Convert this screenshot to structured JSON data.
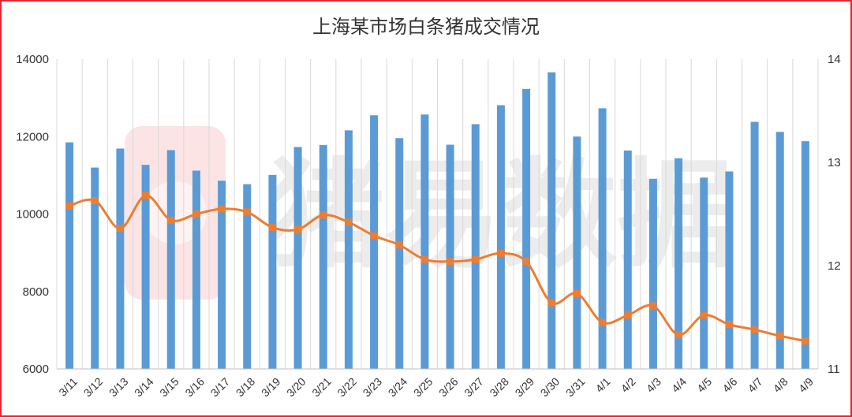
{
  "title": "上海某市场白条猪成交情况",
  "watermark": "猪易数据",
  "colors": {
    "bar": "#5b9bd5",
    "line": "#ed7d31",
    "border": "#e8232c",
    "grid": "#d9d9d9",
    "watermark_logo": "#e8232c"
  },
  "chart_data": {
    "type": "bar",
    "title": "上海某市场白条猪成交情况",
    "categories": [
      "3/11",
      "3/12",
      "3/13",
      "3/14",
      "3/15",
      "3/16",
      "3/17",
      "3/18",
      "3/19",
      "3/20",
      "3/21",
      "3/22",
      "3/23",
      "3/24",
      "3/25",
      "3/26",
      "3/27",
      "3/28",
      "3/29",
      "3/30",
      "3/31",
      "4/1",
      "4/2",
      "4/3",
      "4/4",
      "4/5",
      "4/6",
      "4/7",
      "4/8",
      "4/9"
    ],
    "y_left": {
      "range": [
        6000,
        14000
      ],
      "ticks": [
        6000,
        8000,
        10000,
        12000,
        14000
      ]
    },
    "y_right": {
      "range": [
        11,
        14
      ],
      "ticks": [
        11,
        12,
        13,
        14
      ]
    },
    "grid": true,
    "legend": "none",
    "series": [
      {
        "type": "bar",
        "axis": "left",
        "values": [
          11850,
          11200,
          11690,
          11270,
          11650,
          11120,
          10860,
          10770,
          11010,
          11730,
          11780,
          12160,
          12550,
          11960,
          12570,
          11790,
          12320,
          12810,
          13230,
          13660,
          12000,
          12730,
          11640,
          10910,
          11440,
          10940,
          11100,
          12380,
          12120,
          11880
        ]
      },
      {
        "type": "line",
        "axis": "right",
        "smooth": true,
        "values": [
          12.58,
          12.63,
          12.36,
          12.68,
          12.44,
          12.5,
          12.55,
          12.52,
          12.37,
          12.35,
          12.49,
          12.42,
          12.29,
          12.2,
          12.06,
          12.04,
          12.06,
          12.12,
          12.04,
          11.64,
          11.73,
          11.45,
          11.52,
          11.61,
          11.33,
          11.52,
          11.43,
          11.38,
          11.32,
          11.27
        ]
      }
    ]
  }
}
